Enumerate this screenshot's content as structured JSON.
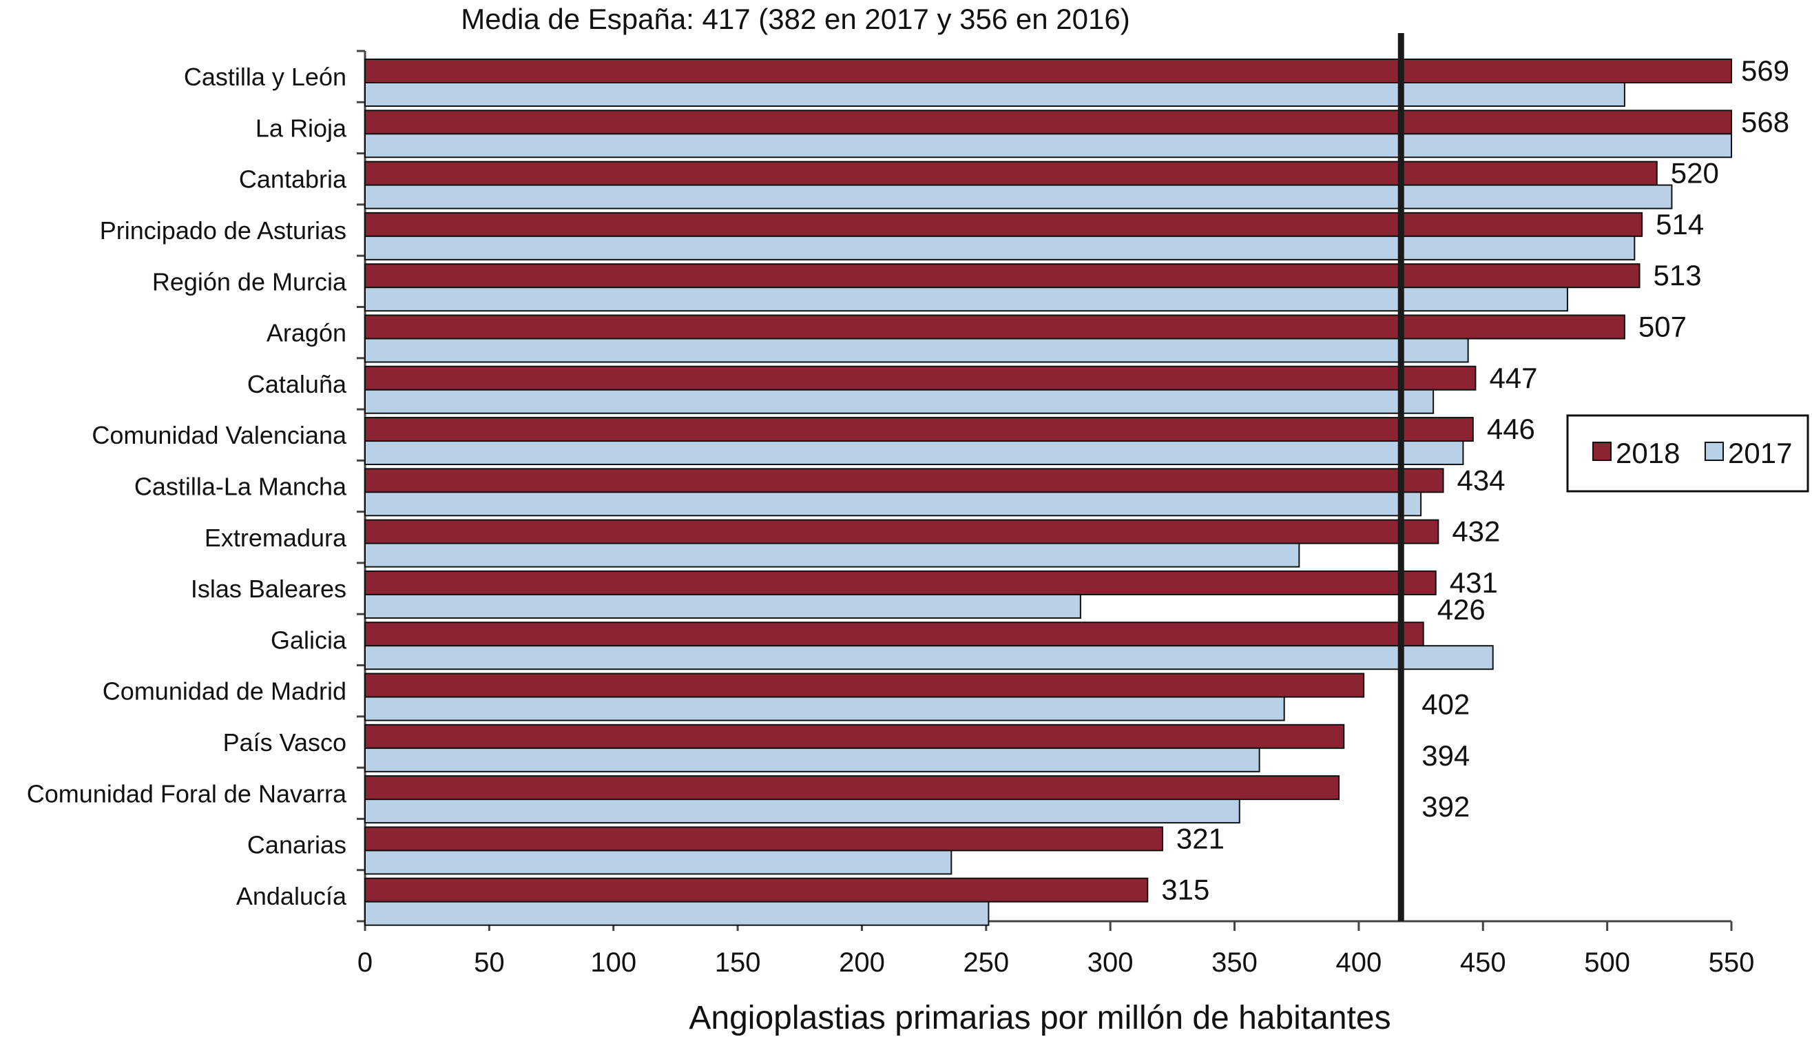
{
  "chart_data": {
    "type": "bar",
    "orientation": "horizontal",
    "title": "Media de España: 417 (382 en 2017 y 356 en 2016)",
    "xlabel": "Angioplastias primarias por millón de habitantes",
    "ylabel": "",
    "xlim": [
      0,
      550
    ],
    "xticks": [
      "0",
      "50",
      "100",
      "150",
      "200",
      "250",
      "300",
      "350",
      "400",
      "450",
      "500",
      "550"
    ],
    "reference_line": {
      "value": 417
    },
    "legend_position": "right",
    "categories": [
      "Castilla y León",
      "La Rioja",
      "Cantabria",
      "Principado de Asturias",
      "Región de Murcia",
      "Aragón",
      "Cataluña",
      "Comunidad Valenciana",
      "Castilla-La Mancha",
      "Extremadura",
      "Islas Baleares",
      "Galicia",
      "Comunidad de Madrid",
      "País Vasco",
      "Comunidad Foral de Navarra",
      "Canarias",
      "Andalucía"
    ],
    "series": [
      {
        "name": "2018",
        "color": "#8b2332",
        "values": [
          569,
          568,
          520,
          514,
          513,
          507,
          447,
          446,
          434,
          432,
          431,
          426,
          402,
          394,
          392,
          321,
          315
        ],
        "labels": [
          "569",
          "568",
          "520",
          "514",
          "513",
          "507",
          "447",
          "446",
          "434",
          "432",
          "431",
          "426",
          "402",
          "394",
          "392",
          "321",
          "315"
        ]
      },
      {
        "name": "2017",
        "color": "#b9d1e6",
        "values": [
          507,
          550,
          526,
          511,
          484,
          444,
          430,
          442,
          425,
          376,
          288,
          454,
          370,
          360,
          352,
          236,
          251
        ]
      }
    ]
  }
}
